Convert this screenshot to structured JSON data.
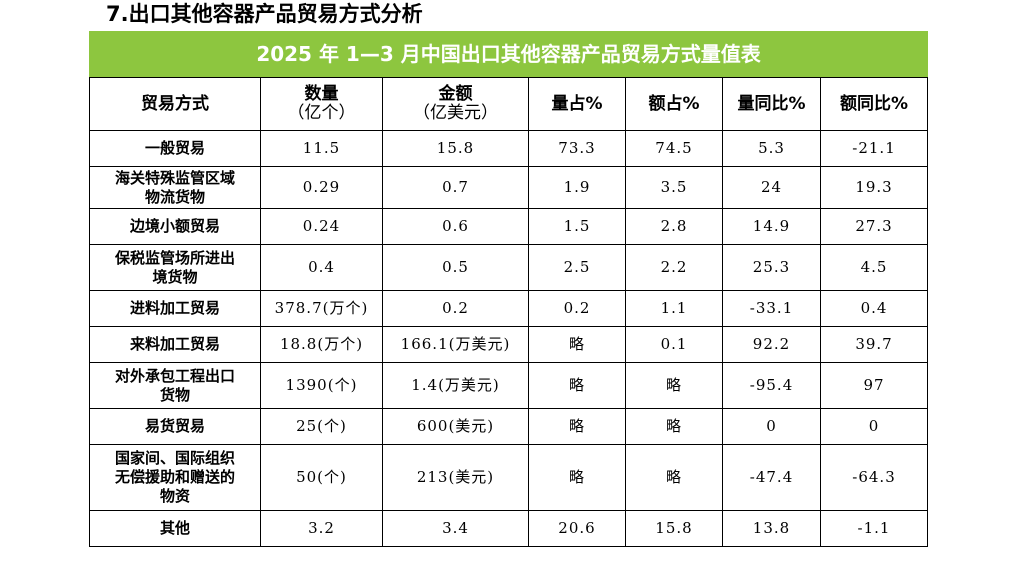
{
  "section_heading": "7.出口其他容器产品贸易方式分析",
  "table": {
    "caption": "2025 年 1—3 月中国出口其他容器产品贸易方式量值表",
    "headers": [
      [
        "贸易方式"
      ],
      [
        "数量",
        "（亿个）"
      ],
      [
        "金额",
        "（亿美元）"
      ],
      [
        "量占%"
      ],
      [
        "额占%"
      ],
      [
        "量同比%"
      ],
      [
        "额同比%"
      ]
    ],
    "rows": [
      {
        "mode": [
          "一般贸易"
        ],
        "qty": "11.5",
        "amt": "15.8",
        "qty_share": "73.3",
        "amt_share": "74.5",
        "qty_yoy": "5.3",
        "amt_yoy": "-21.1"
      },
      {
        "mode": [
          "海关特殊监管区域",
          "物流货物"
        ],
        "qty": "0.29",
        "amt": "0.7",
        "qty_share": "1.9",
        "amt_share": "3.5",
        "qty_yoy": "24",
        "amt_yoy": "19.3"
      },
      {
        "mode": [
          "边境小额贸易"
        ],
        "qty": "0.24",
        "amt": "0.6",
        "qty_share": "1.5",
        "amt_share": "2.8",
        "qty_yoy": "14.9",
        "amt_yoy": "27.3"
      },
      {
        "mode": [
          "保税监管场所进出",
          "境货物"
        ],
        "qty": "0.4",
        "amt": "0.5",
        "qty_share": "2.5",
        "amt_share": "2.2",
        "qty_yoy": "25.3",
        "amt_yoy": "4.5"
      },
      {
        "mode": [
          "进料加工贸易"
        ],
        "qty": "378.7(万个)",
        "amt": "0.2",
        "qty_share": "0.2",
        "amt_share": "1.1",
        "qty_yoy": "-33.1",
        "amt_yoy": "0.4"
      },
      {
        "mode": [
          "来料加工贸易"
        ],
        "qty": "18.8(万个)",
        "amt": "166.1(万美元)",
        "qty_share": "略",
        "amt_share": "0.1",
        "qty_yoy": "92.2",
        "amt_yoy": "39.7"
      },
      {
        "mode": [
          "对外承包工程出口",
          "货物"
        ],
        "qty": "1390(个)",
        "amt": "1.4(万美元)",
        "qty_share": "略",
        "amt_share": "略",
        "qty_yoy": "-95.4",
        "amt_yoy": "97"
      },
      {
        "mode": [
          "易货贸易"
        ],
        "qty": "25(个)",
        "amt": "600(美元)",
        "qty_share": "略",
        "amt_share": "略",
        "qty_yoy": "0",
        "amt_yoy": "0"
      },
      {
        "mode": [
          "国家间、国际组织",
          "无偿援助和赠送的",
          "物资"
        ],
        "qty": "50(个)",
        "amt": "213(美元)",
        "qty_share": "略",
        "amt_share": "略",
        "qty_yoy": "-47.4",
        "amt_yoy": "-64.3"
      },
      {
        "mode": [
          "其他"
        ],
        "qty": "3.2",
        "amt": "3.4",
        "qty_share": "20.6",
        "amt_share": "15.8",
        "qty_yoy": "13.8",
        "amt_yoy": "-1.1"
      }
    ]
  }
}
